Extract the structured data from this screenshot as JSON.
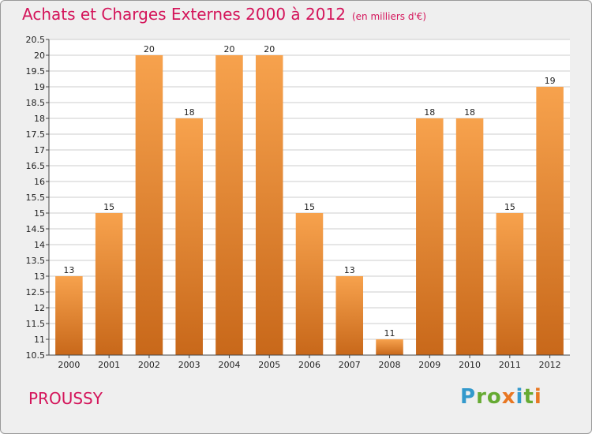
{
  "title": "Achats et Charges Externes 2000 à 2012",
  "subtitle": "(en milliers d'€)",
  "town": "PROUSSY",
  "logo": {
    "text": "Proxiti",
    "letters": [
      {
        "ch": "P",
        "color": "#3399cc"
      },
      {
        "ch": "r",
        "color": "#66aa33"
      },
      {
        "ch": "o",
        "color": "#66aa33"
      },
      {
        "ch": "x",
        "color": "#e87722"
      },
      {
        "ch": "i",
        "color": "#3399cc"
      },
      {
        "ch": "t",
        "color": "#66aa33"
      },
      {
        "ch": "i",
        "color": "#e87722"
      }
    ]
  },
  "colors": {
    "accent": "#d4145a",
    "bar_light": "#f7a24d",
    "bar_dark": "#c8681a",
    "grid": "#cccccc",
    "plot_bg": "#ffffff"
  },
  "chart_data": {
    "type": "bar",
    "title": "Achats et Charges Externes 2000 à 2012",
    "subtitle": "(en milliers d'€)",
    "categories": [
      "2000",
      "2001",
      "2002",
      "2003",
      "2004",
      "2005",
      "2006",
      "2007",
      "2008",
      "2009",
      "2010",
      "2011",
      "2012"
    ],
    "values": [
      13,
      15,
      20,
      18,
      20,
      20,
      15,
      13,
      11,
      18,
      18,
      15,
      19
    ],
    "ylim": [
      10.5,
      20.5
    ],
    "yticks": [
      "10.5",
      "11",
      "11.5",
      "12",
      "12.5",
      "13",
      "13.5",
      "14",
      "14.5",
      "15",
      "15.5",
      "16",
      "16.5",
      "17",
      "17.5",
      "18",
      "18.5",
      "19",
      "19.5",
      "20",
      "20.5"
    ],
    "grid": true,
    "xlabel": "",
    "ylabel": ""
  }
}
